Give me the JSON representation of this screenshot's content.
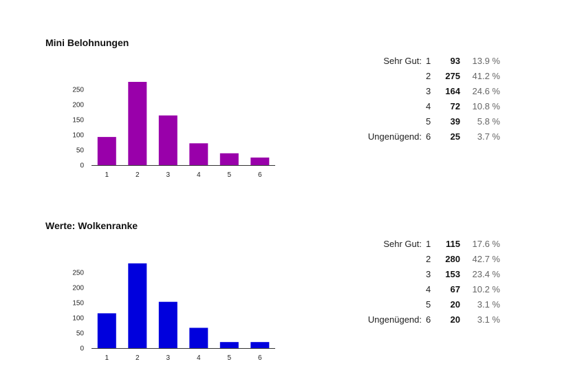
{
  "sections": [
    {
      "title": "Mini Belohnungen",
      "rows": [
        {
          "label": "Sehr Gut:",
          "grade": "1",
          "count": "93",
          "percent": "13.9 %"
        },
        {
          "label": "",
          "grade": "2",
          "count": "275",
          "percent": "41.2 %"
        },
        {
          "label": "",
          "grade": "3",
          "count": "164",
          "percent": "24.6 %"
        },
        {
          "label": "",
          "grade": "4",
          "count": "72",
          "percent": "10.8 %"
        },
        {
          "label": "",
          "grade": "5",
          "count": "39",
          "percent": "5.8 %"
        },
        {
          "label": "Ungenügend:",
          "grade": "6",
          "count": "25",
          "percent": "3.7 %"
        }
      ]
    },
    {
      "title": "Werte: Wolkenranke",
      "rows": [
        {
          "label": "Sehr Gut:",
          "grade": "1",
          "count": "115",
          "percent": "17.6 %"
        },
        {
          "label": "",
          "grade": "2",
          "count": "280",
          "percent": "42.7 %"
        },
        {
          "label": "",
          "grade": "3",
          "count": "153",
          "percent": "23.4 %"
        },
        {
          "label": "",
          "grade": "4",
          "count": "67",
          "percent": "10.2 %"
        },
        {
          "label": "",
          "grade": "5",
          "count": "20",
          "percent": "3.1 %"
        },
        {
          "label": "Ungenügend:",
          "grade": "6",
          "count": "20",
          "percent": "3.1 %"
        }
      ]
    }
  ],
  "chart_data": [
    {
      "type": "bar",
      "title": "Mini Belohnungen",
      "categories": [
        "1",
        "2",
        "3",
        "4",
        "5",
        "6"
      ],
      "values": [
        93,
        275,
        164,
        72,
        39,
        25
      ],
      "color": "#9900aa",
      "yticks": [
        0,
        50,
        100,
        150,
        200,
        250
      ],
      "ylim": [
        0,
        300
      ],
      "grid": false,
      "legend": "none",
      "xlabel": "",
      "ylabel": ""
    },
    {
      "type": "bar",
      "title": "Werte: Wolkenranke",
      "categories": [
        "1",
        "2",
        "3",
        "4",
        "5",
        "6"
      ],
      "values": [
        115,
        280,
        153,
        67,
        20,
        20
      ],
      "color": "#0000dd",
      "yticks": [
        0,
        50,
        100,
        150,
        200,
        250
      ],
      "ylim": [
        0,
        300
      ],
      "grid": false,
      "legend": "none",
      "xlabel": "",
      "ylabel": ""
    }
  ]
}
